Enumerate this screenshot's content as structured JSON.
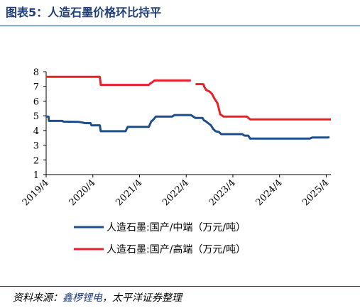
{
  "figure_title": "图表5：人造石墨价格环比持平",
  "source": {
    "prefix": "资料来源：",
    "brand": "鑫椤锂电",
    "suffix": "，太平洋证券整理"
  },
  "colors": {
    "navy": "#1f4e8c",
    "red": "#e8202a",
    "rule": "#1f3f7a"
  },
  "chart_data": {
    "type": "line",
    "title": "",
    "xlabel": "",
    "ylabel": "",
    "ylim": [
      1,
      8
    ],
    "yticks": [
      "1",
      "2",
      "3",
      "4",
      "5",
      "6",
      "7",
      "8"
    ],
    "xticks": [
      {
        "label": "2019/4",
        "t": 2019.25
      },
      {
        "label": "2020/4",
        "t": 2020.25
      },
      {
        "label": "2021/4",
        "t": 2021.25
      },
      {
        "label": "2022/4",
        "t": 2022.25
      },
      {
        "label": "2023/4",
        "t": 2023.25
      },
      {
        "label": "2024/4",
        "t": 2024.25
      },
      {
        "label": "2025/4",
        "t": 2025.25
      }
    ],
    "xlim": [
      2019.25,
      2025.35
    ],
    "grid": false,
    "legend_position": "bottom",
    "series": [
      {
        "name": "人造石墨:国产/中端（万元/吨）",
        "color": "#1f4e8c",
        "points": [
          [
            2019.25,
            4.95
          ],
          [
            2019.3,
            4.95
          ],
          [
            2019.31,
            4.65
          ],
          [
            2019.6,
            4.65
          ],
          [
            2019.62,
            4.6
          ],
          [
            2019.95,
            4.58
          ],
          [
            2020.02,
            4.55
          ],
          [
            2020.08,
            4.5
          ],
          [
            2020.2,
            4.5
          ],
          [
            2020.22,
            4.35
          ],
          [
            2020.4,
            4.35
          ],
          [
            2020.42,
            3.95
          ],
          [
            2020.95,
            3.95
          ],
          [
            2021.0,
            4.25
          ],
          [
            2021.45,
            4.25
          ],
          [
            2021.5,
            4.6
          ],
          [
            2021.55,
            4.75
          ],
          [
            2021.6,
            4.95
          ],
          [
            2021.95,
            4.95
          ],
          [
            2022.0,
            5.05
          ],
          [
            2022.35,
            5.05
          ],
          [
            2022.45,
            4.85
          ],
          [
            2022.6,
            4.85
          ],
          [
            2022.63,
            4.7
          ],
          [
            2022.68,
            4.6
          ],
          [
            2022.72,
            4.5
          ],
          [
            2022.78,
            4.35
          ],
          [
            2022.83,
            4.1
          ],
          [
            2022.88,
            3.95
          ],
          [
            2022.95,
            3.9
          ],
          [
            2023.0,
            3.75
          ],
          [
            2023.45,
            3.75
          ],
          [
            2023.5,
            3.65
          ],
          [
            2023.58,
            3.65
          ],
          [
            2023.62,
            3.45
          ],
          [
            2024.9,
            3.45
          ],
          [
            2024.95,
            3.52
          ],
          [
            2025.28,
            3.52
          ],
          [
            2025.32,
            3.55
          ]
        ]
      },
      {
        "name": "人造石墨:国产/高端（万元/吨）",
        "color": "#e8202a",
        "points": [
          [
            2019.25,
            7.65
          ],
          [
            2020.4,
            7.65
          ],
          [
            2020.42,
            7.1
          ],
          [
            2021.45,
            7.1
          ],
          [
            2021.48,
            7.2
          ],
          [
            2021.53,
            7.3
          ],
          [
            2021.57,
            7.4
          ],
          [
            2022.35,
            7.4
          ],
          null,
          [
            2022.45,
            7.15
          ],
          [
            2022.62,
            7.15
          ],
          [
            2022.64,
            6.95
          ],
          [
            2022.68,
            6.75
          ],
          [
            2022.75,
            6.65
          ],
          [
            2022.8,
            6.5
          ],
          [
            2022.85,
            6.2
          ],
          [
            2022.88,
            6.05
          ],
          [
            2022.92,
            5.85
          ],
          [
            2022.98,
            5.1
          ],
          [
            2023.05,
            4.95
          ],
          [
            2023.55,
            4.95
          ],
          [
            2023.62,
            4.75
          ],
          [
            2025.35,
            4.75
          ]
        ]
      }
    ]
  }
}
